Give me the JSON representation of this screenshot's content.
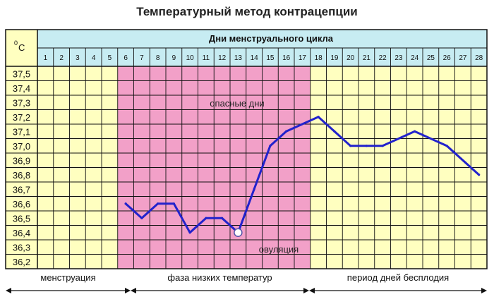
{
  "chart_data": {
    "type": "line",
    "title": "Температурный метод контрацепции",
    "unit_label": "°C",
    "xlabel": "Дни менструального цикла",
    "x_categories": [
      "1",
      "2",
      "3",
      "4",
      "5",
      "6",
      "7",
      "8",
      "9",
      "10",
      "11",
      "12",
      "13",
      "14",
      "15",
      "16",
      "17",
      "18",
      "19",
      "20",
      "21",
      "22",
      "23",
      "24",
      "25",
      "26",
      "27",
      "28"
    ],
    "y_ticks": [
      "37,5",
      "37,4",
      "37,3",
      "37,2",
      "37,1",
      "37,0",
      "36,9",
      "36,8",
      "36,7",
      "36,6",
      "36,5",
      "36,4",
      "36,3",
      "36,2"
    ],
    "ylim": [
      36.15,
      37.55
    ],
    "grid": true,
    "series": [
      {
        "color": "#2222cc",
        "points": [
          {
            "day": 6,
            "t": 36.6
          },
          {
            "day": 7,
            "t": 36.5
          },
          {
            "day": 8,
            "t": 36.6
          },
          {
            "day": 9,
            "t": 36.6
          },
          {
            "day": 10,
            "t": 36.4
          },
          {
            "day": 11,
            "t": 36.5
          },
          {
            "day": 12,
            "t": 36.5
          },
          {
            "day": 13,
            "t": 36.4
          },
          {
            "day": 14,
            "t": 36.7
          },
          {
            "day": 15,
            "t": 37.0
          },
          {
            "day": 16,
            "t": 37.1
          },
          {
            "day": 18,
            "t": 37.2
          },
          {
            "day": 19,
            "t": 37.1
          },
          {
            "day": 20,
            "t": 37.0
          },
          {
            "day": 21,
            "t": 37.0
          },
          {
            "day": 22,
            "t": 37.0
          },
          {
            "day": 24,
            "t": 37.1
          },
          {
            "day": 26,
            "t": 37.0
          },
          {
            "day": 28,
            "t": 36.8
          }
        ]
      }
    ],
    "ovulation_day": 13,
    "ovulation_t": 36.4,
    "danger_zone": {
      "from_day": 6,
      "to_day": 17,
      "label": "опасные дни",
      "color": "#f2a0c8"
    },
    "ovulation_label": "овуляция",
    "colors": {
      "background_cells": "#ffffc0",
      "header": "#c7ecf2",
      "grid": "#111111",
      "line": "#2222cc"
    },
    "phases": [
      {
        "label": "менструация",
        "from_day": 1,
        "to_day": 5
      },
      {
        "label": "фаза низких температур",
        "from_day": 6,
        "to_day": 17
      },
      {
        "label": "период дней бесплодия",
        "from_day": 18,
        "to_day": 28
      }
    ]
  }
}
